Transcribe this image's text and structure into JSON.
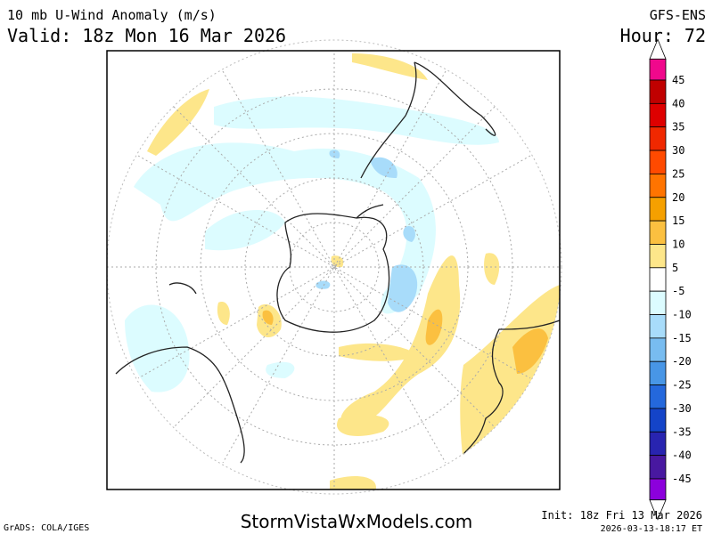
{
  "header": {
    "title": "10 mb U-Wind Anomaly (m/s)",
    "valid": "Valid: 18z Mon 16 Mar 2026",
    "model": "GFS-ENS",
    "hour": "Hour: 72"
  },
  "colorbar": {
    "levels": [
      45,
      40,
      35,
      30,
      25,
      20,
      15,
      10,
      5,
      -5,
      -10,
      -15,
      -20,
      -25,
      -30,
      -35,
      -40,
      -45
    ],
    "colors": [
      "#f0088c",
      "#c00000",
      "#de0000",
      "#f02800",
      "#ff4a00",
      "#ff7400",
      "#f5a000",
      "#fbc040",
      "#fde68a",
      "#ffffff",
      "#dcfcff",
      "#a8dcfa",
      "#78bcf0",
      "#4896e6",
      "#2468dc",
      "#1444c8",
      "#2824b0",
      "#4818a0",
      "#8c00dc"
    ]
  },
  "footer": {
    "credit": "GrADS: COLA/IGES",
    "site": "StormVistaWxModels.com",
    "init": "Init: 18z Fri 13 Mar 2026",
    "timestamp": "2026-03-13-18:17 ET"
  }
}
